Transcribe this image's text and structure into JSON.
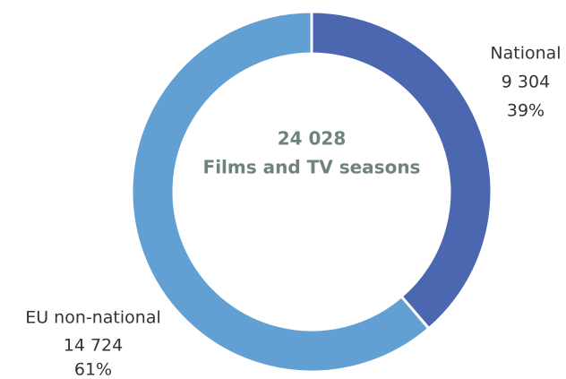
{
  "chart_data": {
    "type": "donut",
    "categories": [
      "National",
      "EU non-national"
    ],
    "values": [
      9304,
      14724
    ],
    "value_labels": [
      "9 304",
      "14 724"
    ],
    "shares": [
      39,
      61
    ],
    "share_labels": [
      "39%",
      "61%"
    ],
    "colors": [
      "#4a67b0",
      "#62a0d4"
    ],
    "total": 24028,
    "total_label": "24 028",
    "center_text": "Films and TV seasons"
  }
}
